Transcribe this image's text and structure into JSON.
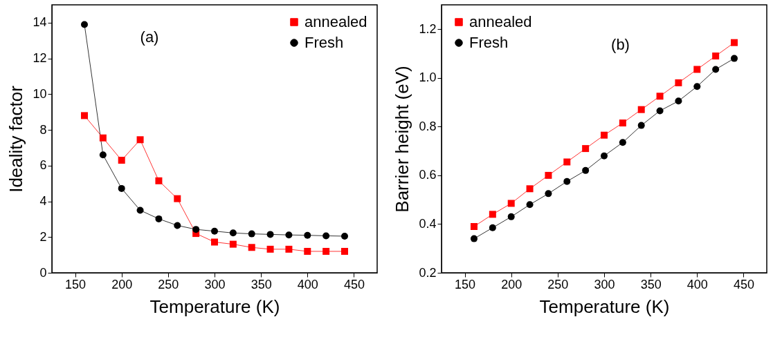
{
  "chart_data": [
    {
      "type": "line",
      "xlabel": "Temperature (K)",
      "ylabel": "Ideality factor",
      "annotations": [
        "(a)"
      ],
      "x": [
        160,
        180,
        200,
        220,
        240,
        260,
        280,
        300,
        320,
        340,
        360,
        380,
        400,
        420,
        440
      ],
      "xlim": [
        125,
        475
      ],
      "xticks": [
        150,
        200,
        250,
        300,
        350,
        400,
        450
      ],
      "ylim": [
        0,
        15
      ],
      "yticks": [
        0,
        2,
        4,
        6,
        8,
        10,
        12,
        14
      ],
      "legend": "top right",
      "grid": false,
      "line_style": "solid",
      "series": [
        {
          "name": "annealed",
          "color": "#ff0000",
          "marker": "square",
          "values": [
            8.8,
            7.55,
            6.3,
            7.45,
            5.15,
            4.15,
            2.2,
            1.72,
            1.6,
            1.42,
            1.32,
            1.32,
            1.2,
            1.2,
            1.2
          ]
        },
        {
          "name": "Fresh",
          "color": "#000000",
          "marker": "circle",
          "values": [
            13.9,
            6.6,
            4.72,
            3.5,
            3.02,
            2.65,
            2.43,
            2.33,
            2.23,
            2.18,
            2.15,
            2.12,
            2.1,
            2.07,
            2.05
          ]
        }
      ]
    },
    {
      "type": "line",
      "xlabel": "Temperature (K)",
      "ylabel": "Barrier height (eV)",
      "annotations": [
        "(b)"
      ],
      "x": [
        160,
        180,
        200,
        220,
        240,
        260,
        280,
        300,
        320,
        340,
        360,
        380,
        400,
        420,
        440
      ],
      "xlim": [
        125,
        475
      ],
      "xticks": [
        150,
        200,
        250,
        300,
        350,
        400,
        450
      ],
      "ylim": [
        0.2,
        1.3
      ],
      "yticks": [
        {
          "value": 0.2,
          "label": "0.2"
        },
        {
          "value": 0.4,
          "label": "0.4"
        },
        {
          "value": 0.6,
          "label": "0.6"
        },
        {
          "value": 0.8,
          "label": "0.8"
        },
        {
          "value": 1.0,
          "label": "1.0"
        },
        {
          "value": 1.2,
          "label": "1.2"
        }
      ],
      "legend": "top left",
      "grid": false,
      "line_style": "solid",
      "series": [
        {
          "name": "annealed",
          "color": "#ff0000",
          "marker": "square",
          "values": [
            0.39,
            0.44,
            0.485,
            0.545,
            0.6,
            0.655,
            0.71,
            0.765,
            0.815,
            0.87,
            0.925,
            0.98,
            1.035,
            1.09,
            1.145
          ]
        },
        {
          "name": "Fresh",
          "color": "#000000",
          "marker": "circle",
          "values": [
            0.34,
            0.385,
            0.43,
            0.48,
            0.525,
            0.575,
            0.62,
            0.68,
            0.735,
            0.805,
            0.865,
            0.905,
            0.965,
            1.035,
            1.08
          ]
        }
      ]
    }
  ]
}
